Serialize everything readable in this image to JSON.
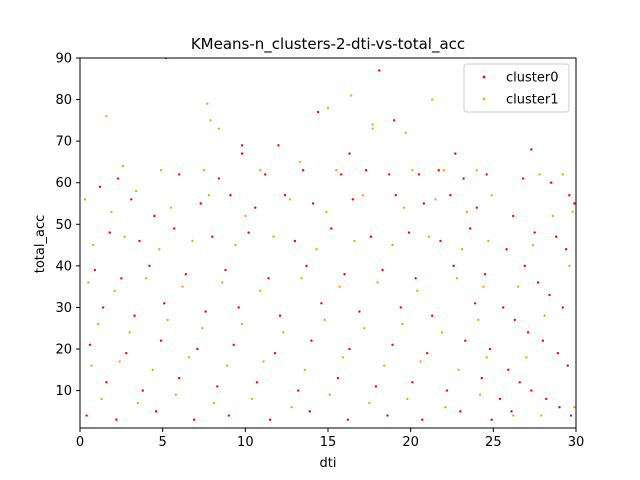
{
  "chart_data": {
    "type": "scatter",
    "title": "KMeans-n_clusters-2-dti-vs-total_acc",
    "xlabel": "dti",
    "ylabel": "total_acc",
    "xlim": [
      0,
      30
    ],
    "ylim": [
      1,
      90
    ],
    "xticks": [
      0,
      5,
      10,
      15,
      20,
      25,
      30
    ],
    "yticks": [
      10,
      20,
      30,
      40,
      50,
      60,
      70,
      80,
      90
    ],
    "grid": false,
    "legend_position": "top-right",
    "series": [
      {
        "name": "cluster0",
        "color": "#ff0000",
        "points": [
          [
            5.2,
            90
          ],
          [
            18.1,
            87
          ],
          [
            19.0,
            75
          ],
          [
            9.8,
            69
          ],
          [
            9.8,
            67
          ],
          [
            14.4,
            77
          ],
          [
            12.0,
            69
          ],
          [
            22.7,
            67
          ],
          [
            27.3,
            68
          ],
          [
            16.3,
            67
          ],
          [
            2.3,
            61
          ],
          [
            6.0,
            62
          ],
          [
            8.4,
            61
          ],
          [
            11.2,
            62
          ],
          [
            13.5,
            63
          ],
          [
            15.8,
            62
          ],
          [
            17.3,
            63
          ],
          [
            18.7,
            62
          ],
          [
            20.5,
            62
          ],
          [
            21.7,
            63
          ],
          [
            23.2,
            61
          ],
          [
            24.6,
            62
          ],
          [
            26.8,
            61
          ],
          [
            28.5,
            60
          ],
          [
            29.6,
            57
          ],
          [
            29.9,
            55
          ],
          [
            26.2,
            52
          ],
          [
            27.5,
            48
          ],
          [
            28.8,
            47
          ],
          [
            29.4,
            44
          ],
          [
            25.8,
            44
          ],
          [
            26.9,
            40
          ],
          [
            27.7,
            36
          ],
          [
            28.4,
            33
          ],
          [
            29.2,
            30
          ],
          [
            25.6,
            30
          ],
          [
            26.3,
            27
          ],
          [
            27.1,
            24
          ],
          [
            28.0,
            22
          ],
          [
            28.9,
            19
          ],
          [
            29.5,
            16
          ],
          [
            25.9,
            15
          ],
          [
            26.6,
            12
          ],
          [
            27.3,
            10
          ],
          [
            28.2,
            8
          ],
          [
            29.0,
            6
          ],
          [
            29.7,
            4
          ],
          [
            25.4,
            8
          ],
          [
            26.1,
            5
          ],
          [
            1.2,
            59
          ],
          [
            3.1,
            56
          ],
          [
            4.5,
            52
          ],
          [
            7.3,
            55
          ],
          [
            9.1,
            57
          ],
          [
            10.6,
            54
          ],
          [
            12.4,
            57
          ],
          [
            14.1,
            55
          ],
          [
            16.5,
            56
          ],
          [
            19.1,
            57
          ],
          [
            20.8,
            55
          ],
          [
            22.4,
            57
          ],
          [
            24.0,
            54
          ],
          [
            1.8,
            48
          ],
          [
            3.6,
            46
          ],
          [
            5.7,
            49
          ],
          [
            8.0,
            47
          ],
          [
            10.2,
            48
          ],
          [
            13.0,
            46
          ],
          [
            15.2,
            49
          ],
          [
            17.6,
            47
          ],
          [
            19.9,
            48
          ],
          [
            21.8,
            46
          ],
          [
            23.6,
            49
          ],
          [
            0.9,
            39
          ],
          [
            2.5,
            37
          ],
          [
            4.2,
            40
          ],
          [
            6.4,
            38
          ],
          [
            8.8,
            39
          ],
          [
            11.4,
            37
          ],
          [
            13.7,
            40
          ],
          [
            16.0,
            38
          ],
          [
            18.3,
            39
          ],
          [
            20.3,
            37
          ],
          [
            22.6,
            40
          ],
          [
            24.5,
            38
          ],
          [
            1.4,
            30
          ],
          [
            3.3,
            28
          ],
          [
            5.1,
            31
          ],
          [
            7.6,
            29
          ],
          [
            9.6,
            30
          ],
          [
            12.1,
            28
          ],
          [
            14.6,
            31
          ],
          [
            16.9,
            29
          ],
          [
            19.4,
            30
          ],
          [
            21.3,
            28
          ],
          [
            23.9,
            31
          ],
          [
            0.6,
            21
          ],
          [
            2.8,
            19
          ],
          [
            4.9,
            22
          ],
          [
            7.1,
            20
          ],
          [
            9.3,
            21
          ],
          [
            11.8,
            19
          ],
          [
            14.0,
            22
          ],
          [
            16.3,
            20
          ],
          [
            18.9,
            21
          ],
          [
            21.0,
            19
          ],
          [
            23.3,
            22
          ],
          [
            24.8,
            20
          ],
          [
            1.6,
            12
          ],
          [
            3.8,
            10
          ],
          [
            6.0,
            13
          ],
          [
            8.3,
            11
          ],
          [
            10.7,
            12
          ],
          [
            13.2,
            10
          ],
          [
            15.6,
            13
          ],
          [
            17.9,
            11
          ],
          [
            20.1,
            12
          ],
          [
            22.2,
            10
          ],
          [
            24.3,
            13
          ],
          [
            0.4,
            4
          ],
          [
            2.2,
            3
          ],
          [
            4.6,
            5
          ],
          [
            6.9,
            3
          ],
          [
            9.0,
            4
          ],
          [
            11.5,
            3
          ],
          [
            13.9,
            5
          ],
          [
            16.2,
            3
          ],
          [
            18.6,
            4
          ],
          [
            20.7,
            3
          ],
          [
            23.0,
            5
          ],
          [
            24.9,
            3
          ]
        ]
      },
      {
        "name": "cluster1",
        "color": "#ffa500",
        "points": [
          [
            1.6,
            76
          ],
          [
            7.7,
            79
          ],
          [
            7.9,
            75
          ],
          [
            8.4,
            73
          ],
          [
            15.0,
            78
          ],
          [
            16.4,
            81
          ],
          [
            17.7,
            74
          ],
          [
            17.7,
            73
          ],
          [
            19.7,
            72
          ],
          [
            21.3,
            80
          ],
          [
            2.6,
            64
          ],
          [
            4.9,
            63
          ],
          [
            7.5,
            63
          ],
          [
            10.9,
            63
          ],
          [
            13.3,
            65
          ],
          [
            15.5,
            63
          ],
          [
            20.1,
            63
          ],
          [
            22.0,
            63
          ],
          [
            24.0,
            63
          ],
          [
            27.8,
            62
          ],
          [
            29.2,
            62
          ],
          [
            28.6,
            52
          ],
          [
            29.8,
            53
          ],
          [
            27.4,
            45
          ],
          [
            29.6,
            40
          ],
          [
            26.5,
            35
          ],
          [
            28.1,
            28
          ],
          [
            27.0,
            18
          ],
          [
            29.9,
            6
          ],
          [
            26.2,
            4
          ],
          [
            27.9,
            4
          ],
          [
            0.3,
            56
          ],
          [
            1.9,
            53
          ],
          [
            3.4,
            58
          ],
          [
            5.5,
            54
          ],
          [
            7.8,
            57
          ],
          [
            10.0,
            52
          ],
          [
            12.7,
            56
          ],
          [
            14.9,
            53
          ],
          [
            17.1,
            57
          ],
          [
            19.6,
            54
          ],
          [
            21.5,
            56
          ],
          [
            23.4,
            53
          ],
          [
            24.9,
            57
          ],
          [
            0.8,
            45
          ],
          [
            2.7,
            47
          ],
          [
            4.8,
            44
          ],
          [
            6.8,
            46
          ],
          [
            9.4,
            45
          ],
          [
            11.7,
            47
          ],
          [
            14.3,
            44
          ],
          [
            16.6,
            46
          ],
          [
            18.9,
            45
          ],
          [
            21.1,
            47
          ],
          [
            23.1,
            44
          ],
          [
            24.7,
            46
          ],
          [
            0.5,
            36
          ],
          [
            2.1,
            34
          ],
          [
            4.0,
            37
          ],
          [
            6.2,
            35
          ],
          [
            8.6,
            36
          ],
          [
            10.9,
            34
          ],
          [
            13.4,
            37
          ],
          [
            15.7,
            35
          ],
          [
            18.0,
            36
          ],
          [
            20.4,
            34
          ],
          [
            22.8,
            37
          ],
          [
            24.4,
            35
          ],
          [
            1.1,
            26
          ],
          [
            3.0,
            24
          ],
          [
            5.3,
            27
          ],
          [
            7.4,
            25
          ],
          [
            9.8,
            26
          ],
          [
            12.3,
            24
          ],
          [
            14.8,
            27
          ],
          [
            17.2,
            25
          ],
          [
            19.5,
            26
          ],
          [
            21.9,
            24
          ],
          [
            24.1,
            27
          ],
          [
            0.7,
            16
          ],
          [
            2.4,
            17
          ],
          [
            4.4,
            15
          ],
          [
            6.6,
            18
          ],
          [
            8.9,
            16
          ],
          [
            11.1,
            17
          ],
          [
            13.6,
            15
          ],
          [
            15.9,
            18
          ],
          [
            18.4,
            16
          ],
          [
            20.6,
            17
          ],
          [
            22.9,
            15
          ],
          [
            24.6,
            18
          ],
          [
            1.3,
            8
          ],
          [
            3.5,
            7
          ],
          [
            5.8,
            9
          ],
          [
            8.1,
            7
          ],
          [
            10.4,
            8
          ],
          [
            12.8,
            6
          ],
          [
            15.1,
            9
          ],
          [
            17.5,
            7
          ],
          [
            19.8,
            8
          ],
          [
            22.1,
            6
          ],
          [
            24.2,
            9
          ]
        ]
      }
    ]
  }
}
